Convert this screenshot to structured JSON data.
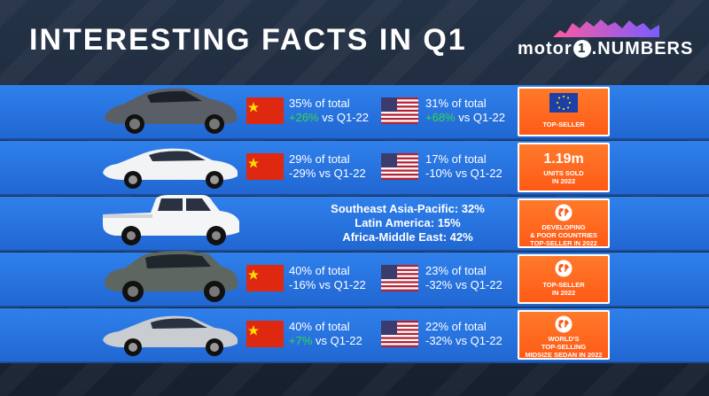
{
  "title": "INTERESTING FACTS IN Q1",
  "logo": {
    "left": "motor",
    "one": "1",
    "right": ".NUMBERS"
  },
  "rows": [
    {
      "car_icon": "suv-crossover-icon",
      "china": {
        "line1": "35% of total",
        "change": "+26%",
        "suffix": " vs Q1-22"
      },
      "usa": {
        "line1": "31% of total",
        "change": "+68%",
        "suffix": " vs Q1-22"
      },
      "badge": {
        "icon": "eu-flag-icon",
        "text": "TOP-SELLER"
      }
    },
    {
      "car_icon": "sedan-icon",
      "china": {
        "line1": "29% of total",
        "change": "-29%",
        "suffix": " vs Q1-22"
      },
      "usa": {
        "line1": "17% of total",
        "change": "-10%",
        "suffix": " vs Q1-22"
      },
      "badge": {
        "big": "1.19m",
        "text": "UNITS SOLD\nIN 2022"
      }
    },
    {
      "car_icon": "pickup-truck-icon",
      "regions": [
        "Southeast Asia-Pacific: 32%",
        "Latin America: 15%",
        "Africa-Middle East: 42%"
      ],
      "badge": {
        "icon": "globe-icon",
        "text": "DEVELOPING\n& POOR COUNTRIES\nTOP-SELLER IN 2022"
      }
    },
    {
      "car_icon": "suv-icon",
      "china": {
        "line1": "40% of total",
        "change": "-16%",
        "suffix": " vs Q1-22"
      },
      "usa": {
        "line1": "23% of total",
        "change": "-32%",
        "suffix": " vs Q1-22"
      },
      "badge": {
        "icon": "globe-icon",
        "text": "TOP-SELLER\nIN 2022"
      }
    },
    {
      "car_icon": "sedan-icon",
      "china": {
        "line1": "40% of total",
        "change": "+7%",
        "suffix": " vs Q1-22"
      },
      "usa": {
        "line1": "22% of total",
        "change": "-32%",
        "suffix": " vs Q1-22"
      },
      "badge": {
        "icon": "globe-icon",
        "text": "WORLD'S\nTOP-SELLING\nMIDSIZE SEDAN IN 2022"
      }
    }
  ],
  "colors": {
    "band": "#2f80ec",
    "badge": "#ff5a16",
    "positive": "#34d94a"
  }
}
